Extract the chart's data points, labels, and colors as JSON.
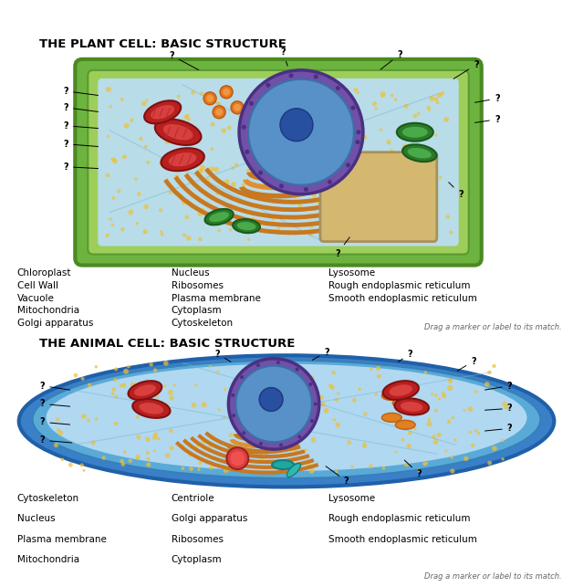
{
  "title_plant": "THE PLANT CELL: BASIC STRUCTURE",
  "title_animal": "THE ANIMAL CELL: BASIC STRUCTURE",
  "plant_labels_col1": [
    "Chloroplast",
    "Cell Wall",
    "Vacuole",
    "Mitochondria",
    "Golgi apparatus"
  ],
  "plant_labels_col2": [
    "Nucleus",
    "Ribosomes",
    "Plasma membrane",
    "Cytoplasm",
    "Cytoskeleton"
  ],
  "plant_labels_col3": [
    "Lysosome",
    "Rough endoplasmic reticulum",
    "Smooth endoplasmic reticulum"
  ],
  "animal_labels_col1": [
    "Cytoskeleton",
    "Nucleus",
    "Plasma membrane",
    "Mitochondria"
  ],
  "animal_labels_col2": [
    "Centriole",
    "Golgi apparatus",
    "Ribosomes",
    "Cytoplasm"
  ],
  "animal_labels_col3": [
    "Lysosome",
    "Rough endoplasmic reticulum",
    "Smooth endoplasmic reticulum"
  ],
  "drag_text": "Drag a marker or label to its match.",
  "bg_color": "#ffffff",
  "title_fontsize": 9.5,
  "label_fontsize": 7.5,
  "drag_fontsize": 6.0
}
